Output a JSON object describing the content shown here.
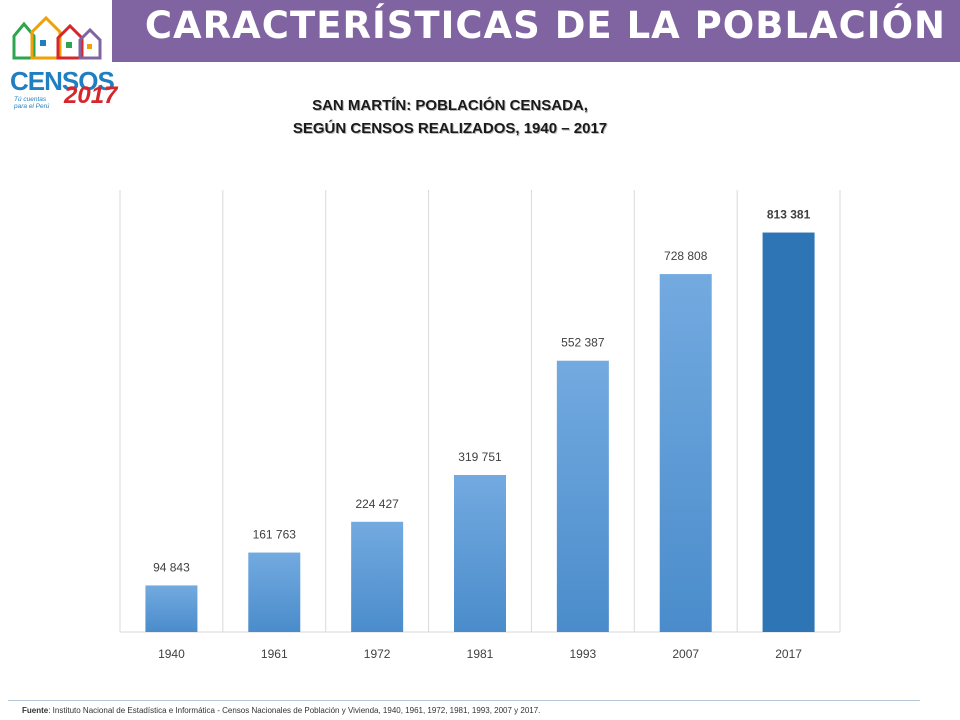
{
  "header": {
    "title": "CARACTERÍSTICAS DE LA POBLACIÓN"
  },
  "logo": {
    "brand": "CENSOS",
    "year": "2017",
    "tagline": "Tú cuentas para el Perú"
  },
  "chart_data": {
    "type": "bar",
    "title_line1": "SAN MARTÍN: POBLACIÓN CENSADA,",
    "title_line2": "SEGÚN CENSOS REALIZADOS, 1940 – 2017",
    "categories": [
      "1940",
      "1961",
      "1972",
      "1981",
      "1993",
      "2007",
      "2017"
    ],
    "values": [
      94843,
      161763,
      224427,
      319751,
      552387,
      728808,
      813381
    ],
    "value_labels": [
      "94 843",
      "161 763",
      "224 427",
      "319 751",
      "552 387",
      "728 808",
      "813 381"
    ],
    "highlight_last": true,
    "ylim": [
      0,
      900000
    ],
    "grid": "vertical",
    "colors": {
      "bar": "#5b9bd5",
      "bar_light": "#73aae0",
      "bar_highlight": "#2e75b6",
      "grid": "#d9d9d9"
    }
  },
  "footer": {
    "source_label": "Fuente",
    "source_text": ": Instituto Nacional de Estadística e Informática - Censos Nacionales de Población y Vivienda, 1940, 1961, 1972, 1981, 1993, 2007 y 2017."
  },
  "colors": {
    "header_band": "#8064a2"
  }
}
